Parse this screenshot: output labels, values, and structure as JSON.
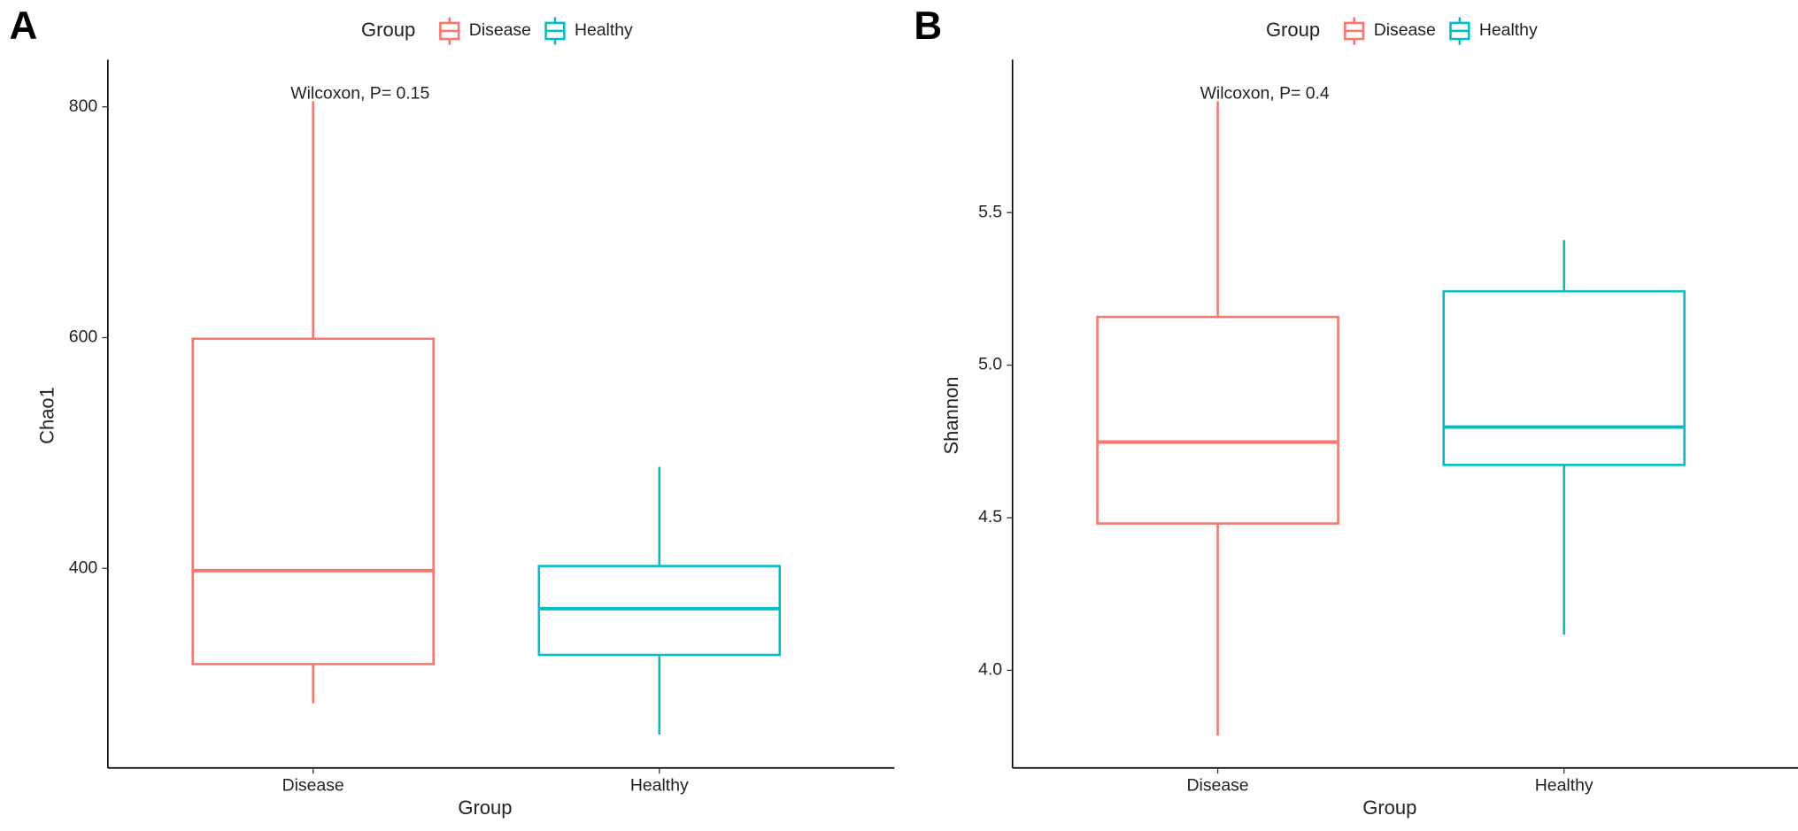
{
  "chart_data": [
    {
      "type": "box",
      "panel_label": "A",
      "annotation": "Wilcoxon, P= 0.15",
      "x_label": "Group",
      "y_label": "Chao1",
      "legend_title": "Group",
      "categories": [
        "Disease",
        "Healthy"
      ],
      "series": [
        {
          "name": "Disease",
          "color": "#F8766D",
          "whisker_low": 283,
          "q1": 317,
          "median": 398,
          "q3": 599,
          "whisker_high": 805
        },
        {
          "name": "Healthy",
          "color": "#00BFC4",
          "whisker_low": 256,
          "q1": 325,
          "median": 365,
          "q3": 402,
          "whisker_high": 488
        }
      ],
      "ylim": [
        227,
        838
      ],
      "yticks": [
        400,
        600,
        800
      ]
    },
    {
      "type": "box",
      "panel_label": "B",
      "annotation": "Wilcoxon, P= 0.4",
      "x_label": "Group",
      "y_label": "Shannon",
      "legend_title": "Group",
      "categories": [
        "Disease",
        "Healthy"
      ],
      "series": [
        {
          "name": "Disease",
          "color": "#F8766D",
          "whisker_low": 3.786,
          "q1": 4.481,
          "median": 4.748,
          "q3": 5.158,
          "whisker_high": 5.865
        },
        {
          "name": "Healthy",
          "color": "#00BFC4",
          "whisker_low": 4.117,
          "q1": 4.673,
          "median": 4.797,
          "q3": 5.242,
          "whisker_high": 5.41
        }
      ],
      "ylim": [
        3.68,
        5.99
      ],
      "yticks": [
        {
          "value": 4,
          "label": "4.0"
        },
        4.5,
        {
          "value": 5,
          "label": "5.0"
        },
        5.5
      ]
    }
  ]
}
